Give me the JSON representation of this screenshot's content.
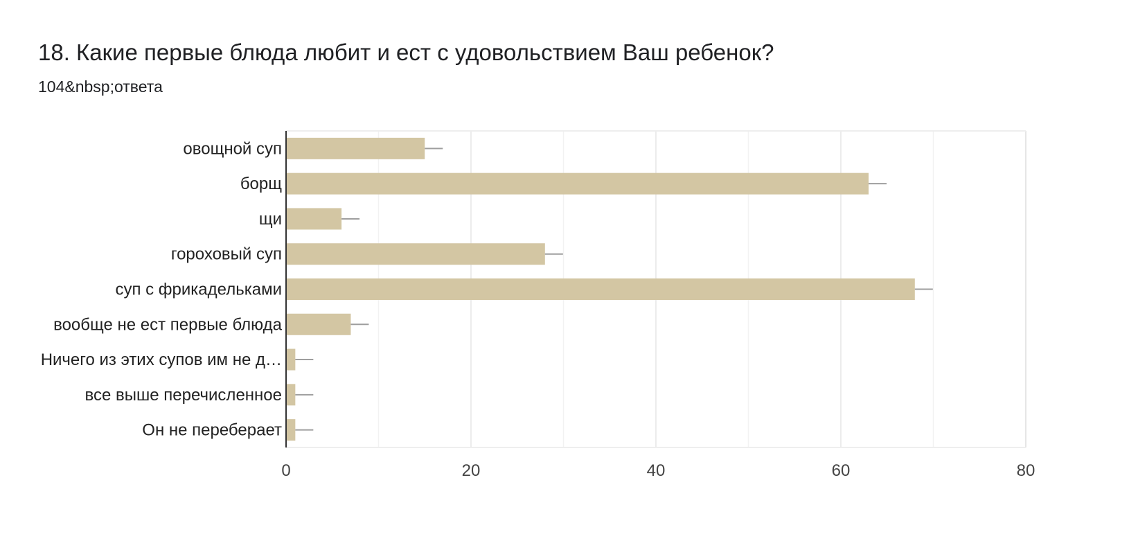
{
  "header": {
    "title": "18. Какие первые блюда любит и ест с удовольствием Ваш ребенок?",
    "responses": "104&nbsp;ответа"
  },
  "chart_data": {
    "type": "bar",
    "orientation": "horizontal",
    "categories": [
      "овощной суп",
      "борщ",
      "щи",
      "гороховый суп",
      "суп с фрикадельками",
      "вообще не ест первые блюда",
      "Ничего из этих супов им не д…",
      "все выше перечисленное",
      "Он не переберает"
    ],
    "values": [
      15,
      63,
      6,
      28,
      68,
      7,
      1,
      1,
      1
    ],
    "xlim": [
      0,
      80
    ],
    "xticks": [
      0,
      20,
      40,
      60,
      80
    ],
    "grid": true,
    "bar_color": "#d3c6a3",
    "error_bars": true,
    "title": "",
    "xlabel": "",
    "ylabel": ""
  }
}
